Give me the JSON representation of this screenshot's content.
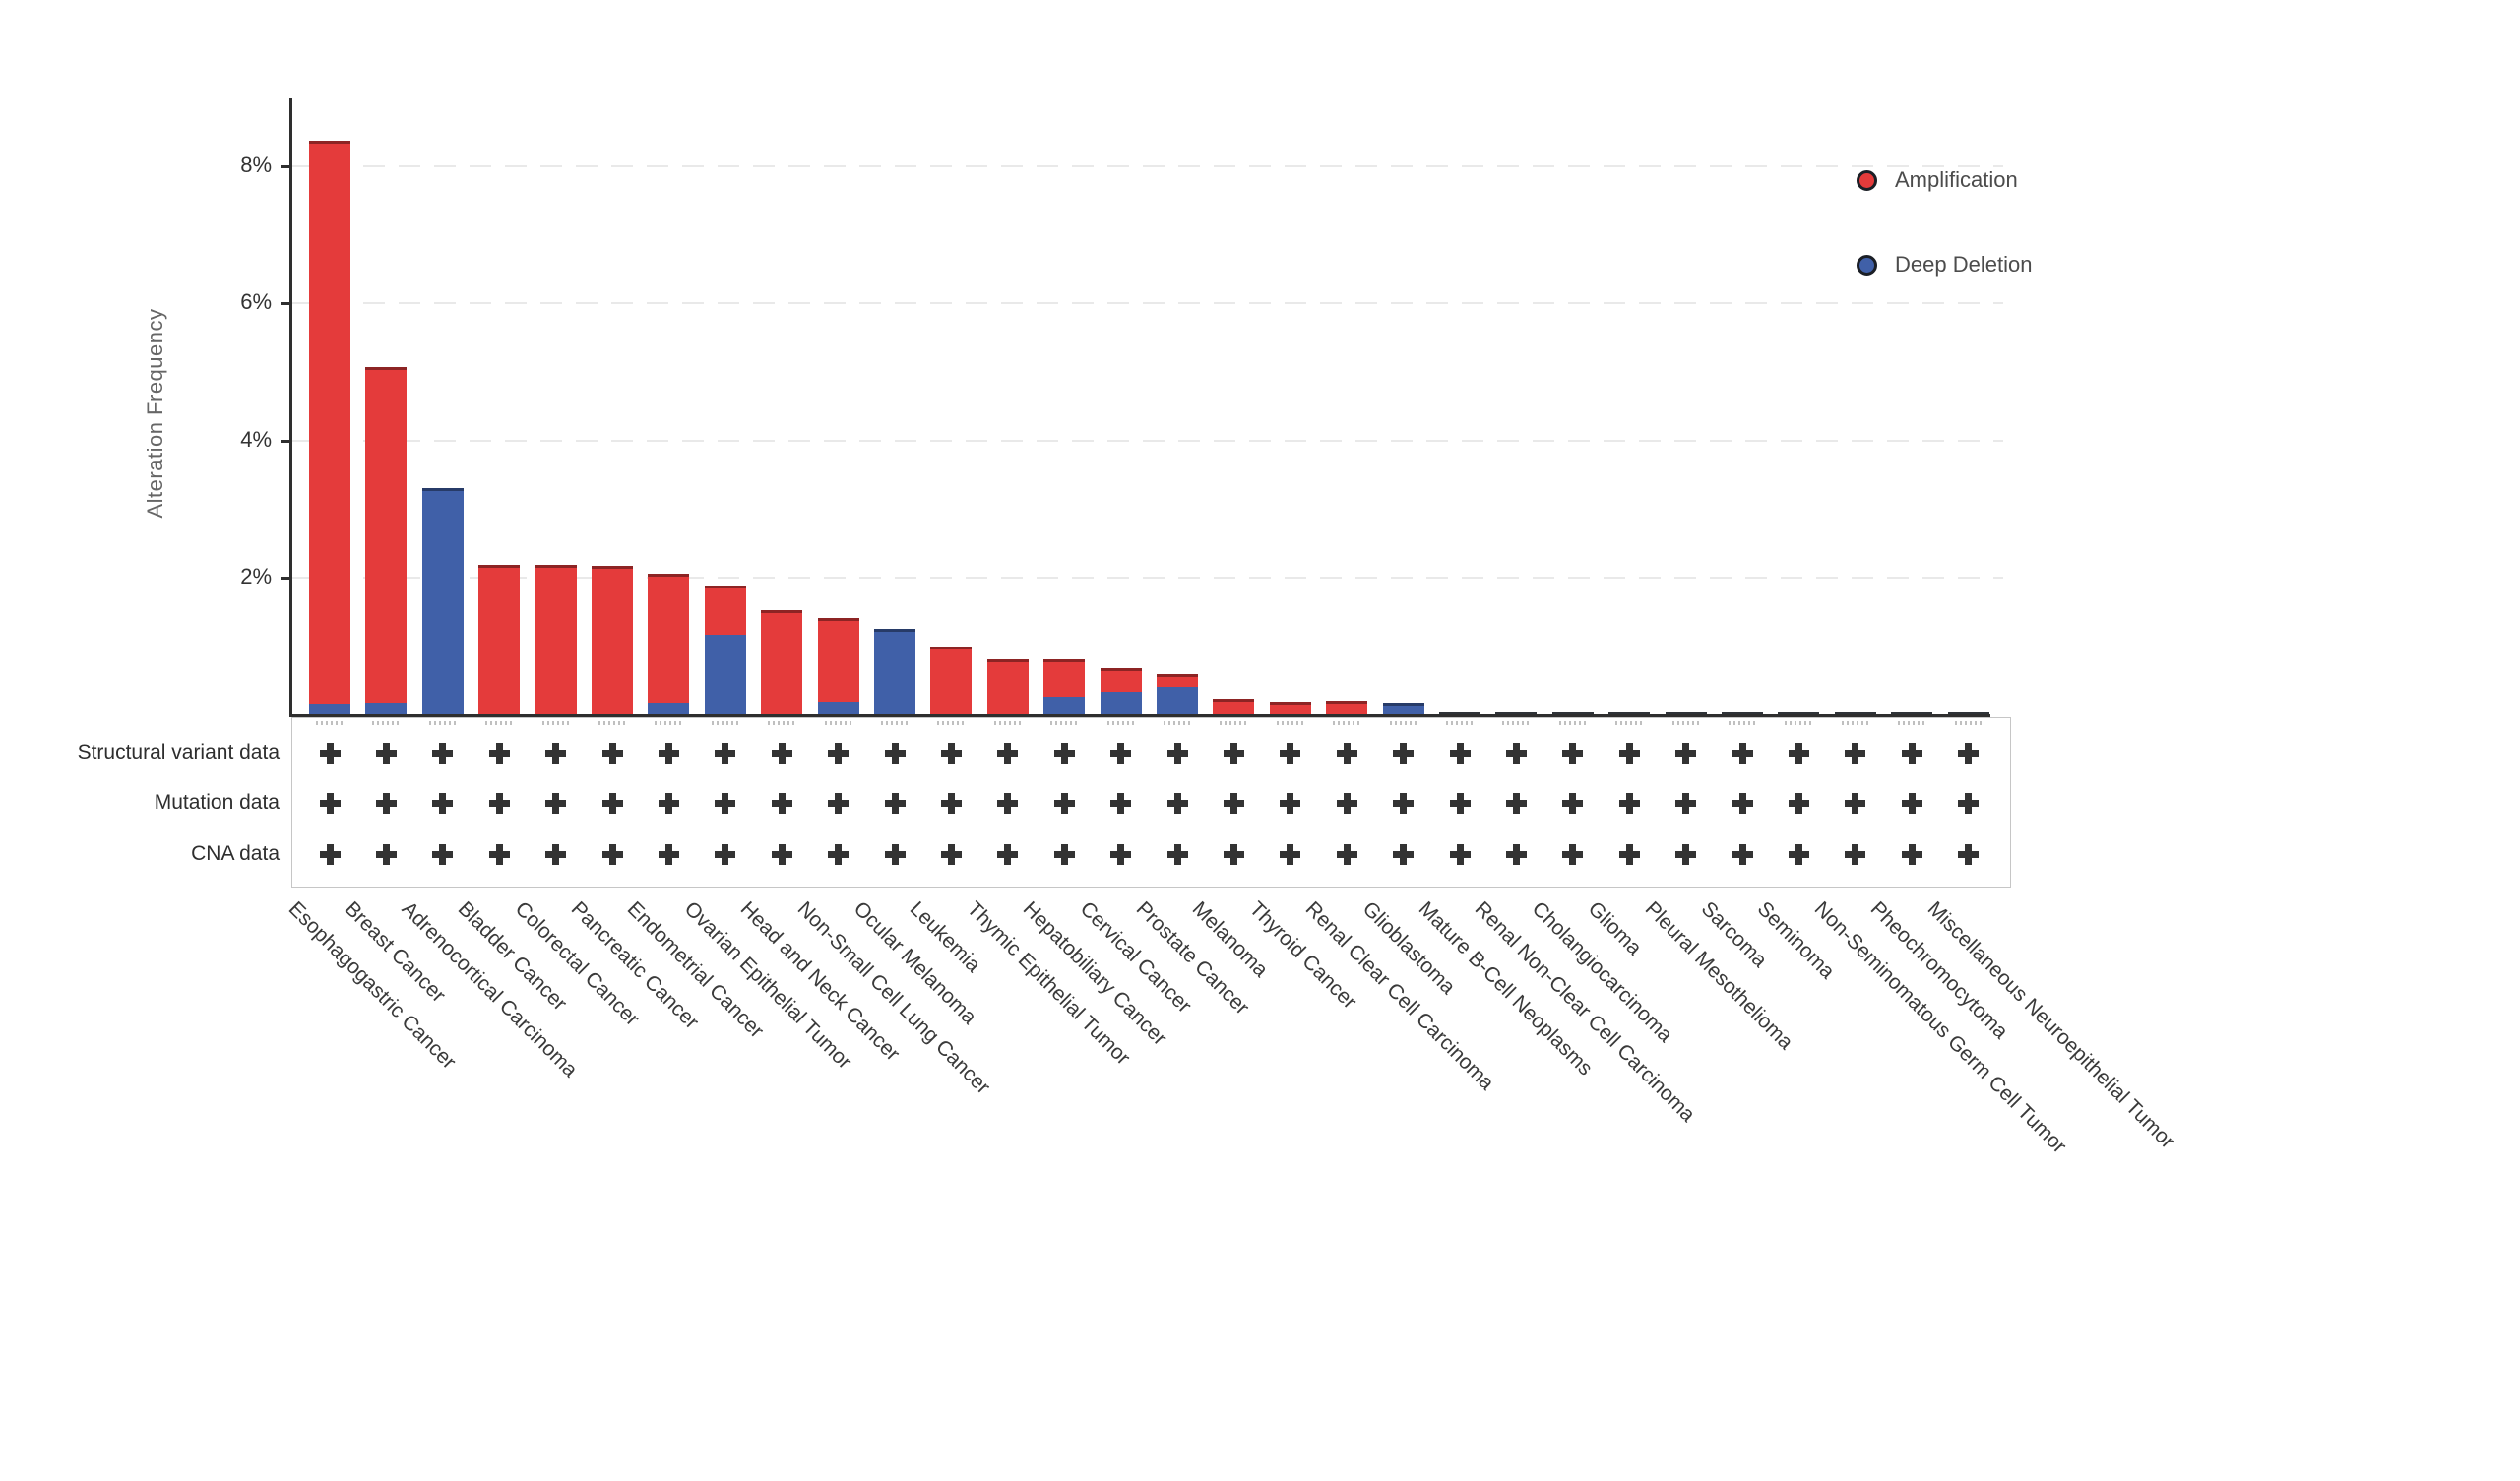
{
  "chart_data": {
    "type": "bar",
    "stacked": true,
    "title": "",
    "ylabel": "Alteration Frequency",
    "ylim": [
      0,
      9
    ],
    "grid": "dashed-horizontal",
    "legend_position": "top-right",
    "yticks": [
      {
        "value": 2,
        "label": "2%"
      },
      {
        "value": 4,
        "label": "4%"
      },
      {
        "value": 6,
        "label": "6%"
      },
      {
        "value": 8,
        "label": "8%"
      }
    ],
    "categories": [
      "Esophagogastric Cancer",
      "Breast Cancer",
      "Adrenocortical Carcinoma",
      "Bladder Cancer",
      "Colorectal Cancer",
      "Pancreatic Cancer",
      "Endometrial Cancer",
      "Ovarian Epithelial Tumor",
      "Head and Neck Cancer",
      "Non-Small Cell Lung Cancer",
      "Ocular Melanoma",
      "Leukemia",
      "Thymic Epithelial Tumor",
      "Hepatobiliary Cancer",
      "Cervical Cancer",
      "Prostate Cancer",
      "Melanoma",
      "Thyroid Cancer",
      "Renal Clear Cell Carcinoma",
      "Glioblastoma",
      "Mature B-Cell Neoplasms",
      "Renal Non-Clear Cell Carcinoma",
      "Cholangiocarcinoma",
      "Glioma",
      "Pleural Mesothelioma",
      "Sarcoma",
      "Seminoma",
      "Non-Seminomatous Germ Cell Tumor",
      "Pheochromocytoma",
      "Miscellaneous Neuroepithelial Tumor"
    ],
    "stack_order_bottom_to_top": [
      "Deep Deletion",
      "Amplification"
    ],
    "series": [
      {
        "name": "Amplification",
        "color": "#e43b3b",
        "values": [
          8.21,
          4.9,
          0,
          2.19,
          2.19,
          2.17,
          1.89,
          0.71,
          1.52,
          1.23,
          0,
          0.99,
          0.81,
          0.55,
          0.35,
          0.19,
          0.23,
          0.19,
          0.2,
          0,
          0.01,
          0.01,
          0.01,
          0.01,
          0.01,
          0.01,
          0.01,
          0.01,
          0.01,
          0.01
        ]
      },
      {
        "name": "Deep Deletion",
        "color": "#4060a8",
        "values": [
          0.16,
          0.17,
          3.3,
          0,
          0,
          0,
          0.17,
          1.17,
          0,
          0.18,
          1.25,
          0,
          0,
          0.26,
          0.33,
          0.4,
          0,
          0,
          0,
          0.17,
          0.01,
          0.01,
          0.01,
          0.01,
          0.01,
          0.01,
          0.01,
          0.01,
          0.01,
          0.01
        ]
      }
    ]
  },
  "tracks": {
    "marker": "plus",
    "rows": [
      {
        "label": "Structural variant data"
      },
      {
        "label": "Mutation data"
      },
      {
        "label": "CNA data"
      }
    ],
    "all_columns_present": true
  },
  "colors": {
    "amplification": "#e43b3b",
    "deep_deletion": "#4060a8",
    "axis": "#2e2e2e",
    "grid": "#e9e9e9",
    "plus_marker": "#333333"
  }
}
